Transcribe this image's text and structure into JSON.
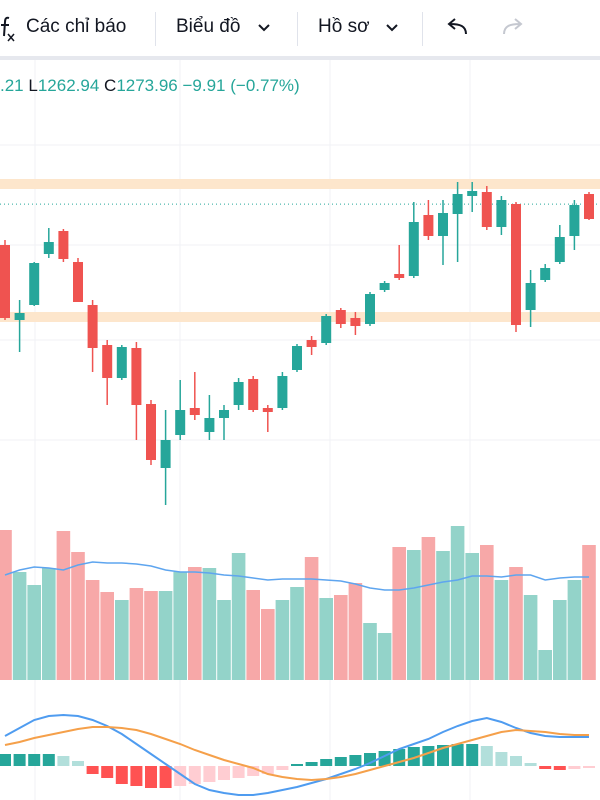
{
  "toolbar": {
    "indicators": "Các chỉ báo",
    "chart": "Biểu đồ",
    "profile": "Hồ sơ"
  },
  "legend": {
    "high_tail": ".21",
    "low_key": "L",
    "close_key": "C",
    "change": "−9.91 (−0.77%)"
  },
  "chart_data": {
    "type": "candlestick",
    "up_color": "#26a69a",
    "down_color": "#ef5350",
    "last_low": 1262.94,
    "last_price": 1273.96,
    "zones": [
      1284,
      1217.5
    ],
    "zone_color": "#fde6cc",
    "ylim": [
      1116,
      1336
    ],
    "open": [
      1253.5,
      1216,
      1223.5,
      1249,
      1260.5,
      1245,
      1223.5,
      1203.5,
      1187,
      1202,
      1174,
      1142,
      1158.5,
      1172,
      1160,
      1167,
      1173.5,
      1186.5,
      1172,
      1172,
      1191,
      1206,
      1204.5,
      1221,
      1217,
      1214,
      1231,
      1239,
      1238,
      1268.5,
      1258,
      1269,
      1278,
      1280,
      1262.5,
      1274,
      1221,
      1236,
      1245,
      1258,
      1279
    ],
    "high": [
      1256,
      1226,
      1245,
      1262,
      1261.5,
      1247,
      1226,
      1206,
      1203.5,
      1205,
      1176,
      1171,
      1186,
      1190,
      1178.5,
      1173.5,
      1187,
      1188,
      1173.5,
      1190,
      1204,
      1208,
      1219,
      1222,
      1220,
      1230,
      1235.5,
      1253.5,
      1275,
      1276,
      1276,
      1285,
      1285,
      1283,
      1278,
      1275,
      1241,
      1244,
      1263.5,
      1276,
      1280
    ],
    "low": [
      1216,
      1200,
      1223,
      1247,
      1245,
      1225,
      1190,
      1173.5,
      1186,
      1156,
      1143.5,
      1123.5,
      1156,
      1166,
      1156,
      1156,
      1171,
      1170,
      1160,
      1171,
      1190,
      1198.5,
      1203.5,
      1212,
      1208.5,
      1213,
      1230,
      1236,
      1237,
      1256,
      1243.5,
      1245,
      1270,
      1261,
      1258.5,
      1210,
      1212.5,
      1235,
      1244,
      1251,
      1266
    ],
    "close": [
      1217,
      1219.5,
      1244.5,
      1255,
      1246.5,
      1225,
      1202,
      1187,
      1202.5,
      1173.5,
      1146,
      1156,
      1171,
      1168.5,
      1167,
      1171,
      1185,
      1171,
      1170,
      1188,
      1203,
      1202.5,
      1218,
      1214,
      1213,
      1229,
      1234.5,
      1237,
      1265,
      1258,
      1269.5,
      1279,
      1280.5,
      1262.5,
      1276,
      1213.5,
      1234.5,
      1242,
      1257.5,
      1273.5,
      1266.5
    ],
    "volume": {
      "ylim": [
        0,
        160
      ],
      "up_color": "#93d3c9",
      "down_color": "#f7a8a8",
      "ma_color": "#5ea5ef",
      "values": [
        150,
        108,
        95,
        112,
        149,
        128,
        100,
        88,
        80,
        92,
        89,
        89,
        108,
        113,
        112,
        80,
        127,
        90,
        71,
        80,
        93,
        123,
        82,
        85,
        97,
        57,
        47,
        133,
        130,
        143,
        129,
        154,
        127,
        135,
        100,
        113,
        85,
        30,
        80,
        100,
        135
      ],
      "ma": [
        105,
        110,
        113,
        112,
        110,
        115,
        118,
        117,
        117,
        116,
        114,
        110,
        108,
        108,
        107,
        105,
        104,
        102,
        100,
        101,
        101,
        101,
        100,
        99,
        96,
        92,
        90,
        90,
        92,
        95,
        98,
        100,
        104,
        104,
        103,
        105,
        105,
        100,
        102,
        103,
        103
      ]
    },
    "macd": {
      "ylim": [
        -34,
        66
      ],
      "macd_color": "#4f9cf0",
      "signal_color": "#f5a04a",
      "hist_colors": [
        "#26a69a",
        "#b2dfdb",
        "#ff5252",
        "#ffcdd2"
      ],
      "histogram": [
        12,
        12,
        12,
        12,
        10,
        5,
        -8,
        -12,
        -18,
        -20,
        -22,
        -22,
        -20,
        -18,
        -16,
        -14,
        -12,
        -10,
        -8,
        -4,
        2,
        4,
        7,
        9,
        11,
        13,
        15,
        17,
        19,
        20,
        21,
        22,
        22,
        20,
        14,
        10,
        3,
        -3,
        -4,
        -3,
        -2
      ],
      "macd": [
        30,
        38,
        46,
        50,
        51,
        50,
        46,
        40,
        32,
        22,
        12,
        2,
        -8,
        -18,
        -24,
        -27,
        -29,
        -29,
        -27,
        -24,
        -21,
        -17,
        -13,
        -8,
        -3,
        3,
        10,
        17,
        22,
        27,
        34,
        40,
        45,
        48,
        44,
        38,
        33,
        30,
        29,
        29,
        29
      ],
      "signal": [
        21,
        24,
        28,
        31,
        34,
        37,
        39,
        39,
        38,
        36,
        32,
        27,
        22,
        16,
        11,
        6,
        2,
        -2,
        -8,
        -11,
        -13,
        -14,
        -13,
        -11,
        -8,
        -4,
        0,
        4,
        8,
        13,
        18,
        22,
        26,
        30,
        34,
        36,
        35,
        34,
        32,
        31,
        31
      ]
    }
  }
}
